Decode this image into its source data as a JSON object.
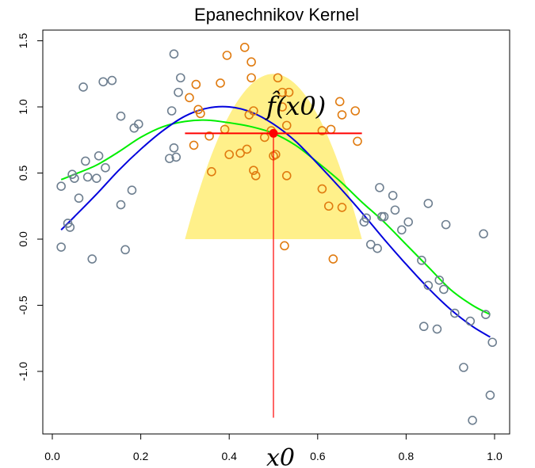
{
  "chart_data": {
    "type": "scatter",
    "title": "Epanechnikov Kernel",
    "xlabel": "",
    "ylabel": "",
    "xlim": [
      -0.02,
      1.03
    ],
    "ylim": [
      -1.55,
      1.55
    ],
    "x_ticks": [
      0.0,
      0.2,
      0.4,
      0.6,
      0.8,
      1.0
    ],
    "x_tick_labels": [
      "0.0",
      "0.2",
      "0.4",
      "0.6",
      "0.8",
      "1.0"
    ],
    "y_ticks": [
      -1.0,
      -0.5,
      0.0,
      0.5,
      1.0,
      1.5
    ],
    "y_tick_labels": [
      "-1.0",
      "-0.5",
      "0.0",
      "0.5",
      "1.0",
      "1.5"
    ],
    "grid": false,
    "colors": {
      "outside_window_points": "#6e7f90",
      "inside_window_points": "#e07b10",
      "kernel_fill": "#fff08a",
      "fitted_curve": "#00ee00",
      "true_curve": "#0000dd",
      "estimate": "#ff0000"
    },
    "kernel": {
      "name": "Epanechnikov",
      "x0": 0.5,
      "half_width": 0.2,
      "peak": 1.25
    },
    "target_point": {
      "x": 0.5,
      "y": 0.8,
      "label": "f̂(x0)"
    },
    "x0_label": "x0",
    "points": [
      {
        "x": 0.02,
        "y": 0.4
      },
      {
        "x": 0.02,
        "y": -0.06
      },
      {
        "x": 0.035,
        "y": 0.12
      },
      {
        "x": 0.04,
        "y": 0.09
      },
      {
        "x": 0.045,
        "y": 0.49
      },
      {
        "x": 0.05,
        "y": 0.46
      },
      {
        "x": 0.06,
        "y": 0.31
      },
      {
        "x": 0.07,
        "y": 1.15
      },
      {
        "x": 0.075,
        "y": 0.59
      },
      {
        "x": 0.08,
        "y": 0.47
      },
      {
        "x": 0.09,
        "y": -0.15
      },
      {
        "x": 0.1,
        "y": 0.46
      },
      {
        "x": 0.105,
        "y": 0.63
      },
      {
        "x": 0.115,
        "y": 1.19
      },
      {
        "x": 0.12,
        "y": 0.54
      },
      {
        "x": 0.135,
        "y": 1.2
      },
      {
        "x": 0.155,
        "y": 0.93
      },
      {
        "x": 0.155,
        "y": 0.26
      },
      {
        "x": 0.165,
        "y": -0.08
      },
      {
        "x": 0.18,
        "y": 0.37
      },
      {
        "x": 0.185,
        "y": 0.84
      },
      {
        "x": 0.195,
        "y": 0.87
      },
      {
        "x": 0.265,
        "y": 0.61
      },
      {
        "x": 0.27,
        "y": 0.97
      },
      {
        "x": 0.275,
        "y": 0.69
      },
      {
        "x": 0.275,
        "y": 1.4
      },
      {
        "x": 0.28,
        "y": 0.62
      },
      {
        "x": 0.285,
        "y": 1.11
      },
      {
        "x": 0.29,
        "y": 1.22
      },
      {
        "x": 0.31,
        "y": 1.07
      },
      {
        "x": 0.32,
        "y": 0.71
      },
      {
        "x": 0.325,
        "y": 1.17
      },
      {
        "x": 0.33,
        "y": 0.98
      },
      {
        "x": 0.335,
        "y": 0.95
      },
      {
        "x": 0.355,
        "y": 0.78
      },
      {
        "x": 0.36,
        "y": 0.51
      },
      {
        "x": 0.38,
        "y": 1.18
      },
      {
        "x": 0.39,
        "y": 0.83
      },
      {
        "x": 0.395,
        "y": 1.39
      },
      {
        "x": 0.4,
        "y": 0.64
      },
      {
        "x": 0.425,
        "y": 0.65
      },
      {
        "x": 0.435,
        "y": 1.45
      },
      {
        "x": 0.44,
        "y": 0.68
      },
      {
        "x": 0.445,
        "y": 0.94
      },
      {
        "x": 0.45,
        "y": 1.34
      },
      {
        "x": 0.45,
        "y": 1.22
      },
      {
        "x": 0.455,
        "y": 0.52
      },
      {
        "x": 0.455,
        "y": 0.97
      },
      {
        "x": 0.46,
        "y": 0.48
      },
      {
        "x": 0.48,
        "y": 0.77
      },
      {
        "x": 0.495,
        "y": 0.82
      },
      {
        "x": 0.5,
        "y": 0.63
      },
      {
        "x": 0.505,
        "y": 0.64
      },
      {
        "x": 0.51,
        "y": 1.22
      },
      {
        "x": 0.52,
        "y": 1.11
      },
      {
        "x": 0.52,
        "y": 1.0
      },
      {
        "x": 0.525,
        "y": -0.05
      },
      {
        "x": 0.53,
        "y": 0.86
      },
      {
        "x": 0.53,
        "y": 0.48
      },
      {
        "x": 0.535,
        "y": 1.11
      },
      {
        "x": 0.61,
        "y": 0.82
      },
      {
        "x": 0.61,
        "y": 0.38
      },
      {
        "x": 0.625,
        "y": 0.25
      },
      {
        "x": 0.63,
        "y": 0.83
      },
      {
        "x": 0.635,
        "y": -0.15
      },
      {
        "x": 0.65,
        "y": 1.04
      },
      {
        "x": 0.655,
        "y": 0.94
      },
      {
        "x": 0.655,
        "y": 0.24
      },
      {
        "x": 0.685,
        "y": 0.97
      },
      {
        "x": 0.69,
        "y": 0.74
      },
      {
        "x": 0.705,
        "y": 0.13
      },
      {
        "x": 0.71,
        "y": 0.16
      },
      {
        "x": 0.72,
        "y": -0.04
      },
      {
        "x": 0.735,
        "y": -0.07
      },
      {
        "x": 0.74,
        "y": 0.39
      },
      {
        "x": 0.745,
        "y": 0.17
      },
      {
        "x": 0.75,
        "y": 0.17
      },
      {
        "x": 0.77,
        "y": 0.33
      },
      {
        "x": 0.775,
        "y": 0.22
      },
      {
        "x": 0.79,
        "y": 0.07
      },
      {
        "x": 0.805,
        "y": 0.13
      },
      {
        "x": 0.835,
        "y": -0.16
      },
      {
        "x": 0.84,
        "y": -0.66
      },
      {
        "x": 0.85,
        "y": 0.27
      },
      {
        "x": 0.85,
        "y": -0.35
      },
      {
        "x": 0.87,
        "y": -0.68
      },
      {
        "x": 0.875,
        "y": -0.31
      },
      {
        "x": 0.885,
        "y": -0.38
      },
      {
        "x": 0.89,
        "y": 0.11
      },
      {
        "x": 0.91,
        "y": -0.56
      },
      {
        "x": 0.93,
        "y": -0.97
      },
      {
        "x": 0.945,
        "y": -0.62
      },
      {
        "x": 0.95,
        "y": -1.37
      },
      {
        "x": 0.975,
        "y": 0.04
      },
      {
        "x": 0.98,
        "y": -0.57
      },
      {
        "x": 0.99,
        "y": -1.18
      },
      {
        "x": 0.995,
        "y": -0.78
      }
    ],
    "series": [
      {
        "color": "green",
        "x": [
          0.02,
          0.05,
          0.1,
          0.15,
          0.2,
          0.25,
          0.3,
          0.35,
          0.4,
          0.45,
          0.5,
          0.55,
          0.6,
          0.65,
          0.7,
          0.75,
          0.8,
          0.85,
          0.9,
          0.95,
          0.99
        ],
        "y": [
          0.45,
          0.49,
          0.56,
          0.66,
          0.77,
          0.85,
          0.89,
          0.9,
          0.88,
          0.85,
          0.8,
          0.71,
          0.58,
          0.44,
          0.28,
          0.13,
          -0.04,
          -0.21,
          -0.38,
          -0.5,
          -0.57
        ]
      },
      {
        "color": "blue",
        "x": [
          0.02,
          0.05,
          0.1,
          0.15,
          0.2,
          0.25,
          0.3,
          0.35,
          0.4,
          0.45,
          0.5,
          0.55,
          0.6,
          0.65,
          0.7,
          0.75,
          0.8,
          0.85,
          0.9,
          0.95,
          0.99
        ],
        "y": [
          0.07,
          0.17,
          0.34,
          0.52,
          0.68,
          0.82,
          0.93,
          0.99,
          1.0,
          0.96,
          0.87,
          0.74,
          0.57,
          0.39,
          0.2,
          0.0,
          -0.19,
          -0.37,
          -0.53,
          -0.66,
          -0.74
        ]
      }
    ]
  }
}
